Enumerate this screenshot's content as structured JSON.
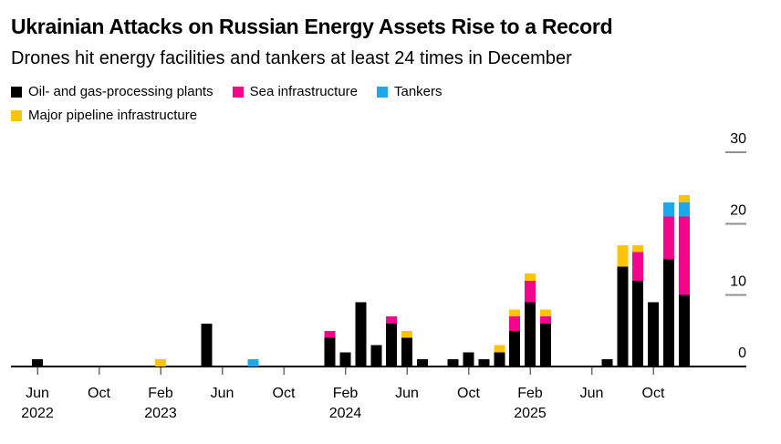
{
  "header": {
    "title": "Ukrainian Attacks on Russian Energy Assets Rise to a Record",
    "subtitle": "Drones hit energy facilities and tankers at least 24 times in December"
  },
  "legend": [
    {
      "label": "Oil- and gas-processing plants",
      "color": "#000000"
    },
    {
      "label": "Sea infrastructure",
      "color": "#f2078c"
    },
    {
      "label": "Tankers",
      "color": "#1ba8ec"
    },
    {
      "label": "Major pipeline infrastructure",
      "color": "#ffc40a"
    }
  ],
  "chart_data": {
    "type": "bar",
    "stacked": true,
    "title": "Ukrainian Attacks on Russian Energy Assets Rise to a Record",
    "subtitle": "Drones hit energy facilities and tankers at least 24 times in December",
    "xlabel": "",
    "ylabel": "",
    "ylim": [
      0,
      30
    ],
    "y_ticks": [
      0,
      10,
      20,
      30
    ],
    "grid": false,
    "legend_position": "top",
    "x": [
      "Jun 2022",
      "Jul 2022",
      "Aug 2022",
      "Sep 2022",
      "Oct 2022",
      "Nov 2022",
      "Dec 2022",
      "Jan 2023",
      "Feb 2023",
      "Mar 2023",
      "Apr 2023",
      "May 2023",
      "Jun 2023",
      "Jul 2023",
      "Aug 2023",
      "Sep 2023",
      "Oct 2023",
      "Nov 2023",
      "Dec 2023",
      "Jan 2024",
      "Feb 2024",
      "Mar 2024",
      "Apr 2024",
      "May 2024",
      "Jun 2024",
      "Jul 2024",
      "Aug 2024",
      "Sep 2024",
      "Oct 2024",
      "Nov 2024",
      "Dec 2024",
      "Jan 2025",
      "Feb 2025",
      "Mar 2025",
      "Apr 2025",
      "May 2025",
      "Jun 2025",
      "Jul 2025",
      "Aug 2025",
      "Sep 2025",
      "Oct 2025",
      "Nov 2025",
      "Dec 2025"
    ],
    "series": [
      {
        "name": "Oil- and gas-processing plants",
        "color": "#000000",
        "values": [
          1,
          0,
          0,
          0,
          0,
          0,
          0,
          0,
          0,
          0,
          0,
          6,
          0,
          0,
          0,
          0,
          0,
          0,
          0,
          4,
          2,
          9,
          3,
          6,
          4,
          1,
          0,
          1,
          2,
          1,
          2,
          5,
          9,
          6,
          0,
          0,
          0,
          1,
          14,
          12,
          9,
          15,
          10
        ]
      },
      {
        "name": "Sea infrastructure",
        "color": "#f2078c",
        "values": [
          0,
          0,
          0,
          0,
          0,
          0,
          0,
          0,
          0,
          0,
          0,
          0,
          0,
          0,
          0,
          0,
          0,
          0,
          0,
          1,
          0,
          0,
          0,
          1,
          0,
          0,
          0,
          0,
          0,
          0,
          0,
          2,
          3,
          1,
          0,
          0,
          0,
          0,
          0,
          4,
          0,
          6,
          11
        ]
      },
      {
        "name": "Tankers",
        "color": "#1ba8ec",
        "values": [
          0,
          0,
          0,
          0,
          0,
          0,
          0,
          0,
          0,
          0,
          0,
          0,
          0,
          0,
          1,
          0,
          0,
          0,
          0,
          0,
          0,
          0,
          0,
          0,
          0,
          0,
          0,
          0,
          0,
          0,
          0,
          0,
          0,
          0,
          0,
          0,
          0,
          0,
          0,
          0,
          0,
          2,
          2
        ]
      },
      {
        "name": "Major pipeline infrastructure",
        "color": "#ffc40a",
        "values": [
          0,
          0,
          0,
          0,
          0,
          0,
          0,
          0,
          1,
          0,
          0,
          0,
          0,
          0,
          0,
          0,
          0,
          0,
          0,
          0,
          0,
          0,
          0,
          0,
          1,
          0,
          0,
          0,
          0,
          0,
          1,
          1,
          1,
          1,
          0,
          0,
          0,
          0,
          3,
          1,
          0,
          0,
          1
        ]
      }
    ],
    "x_ticks": [
      {
        "index": 0,
        "label": "Jun",
        "year": "2022"
      },
      {
        "index": 4,
        "label": "Oct",
        "year": ""
      },
      {
        "index": 8,
        "label": "Feb",
        "year": "2023"
      },
      {
        "index": 12,
        "label": "Jun",
        "year": ""
      },
      {
        "index": 16,
        "label": "Oct",
        "year": ""
      },
      {
        "index": 20,
        "label": "Feb",
        "year": "2024"
      },
      {
        "index": 24,
        "label": "Jun",
        "year": ""
      },
      {
        "index": 28,
        "label": "Oct",
        "year": ""
      },
      {
        "index": 32,
        "label": "Feb",
        "year": "2025"
      },
      {
        "index": 36,
        "label": "Jun",
        "year": ""
      },
      {
        "index": 40,
        "label": "Oct",
        "year": ""
      }
    ]
  }
}
